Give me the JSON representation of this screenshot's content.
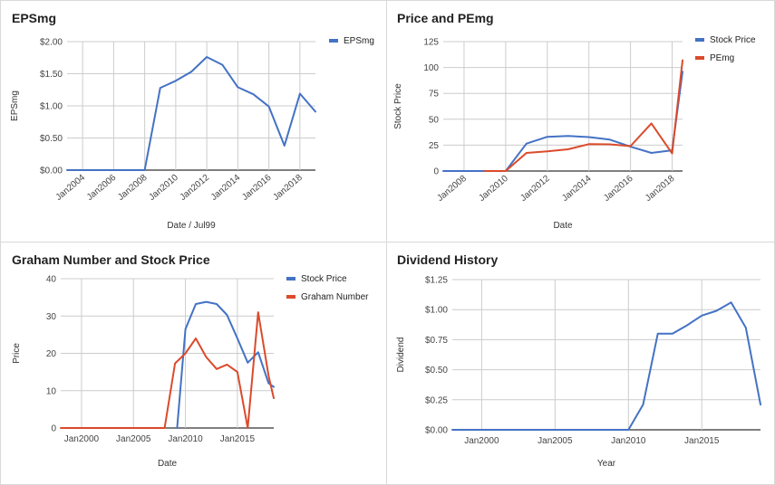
{
  "colors": {
    "blue": "#4472c4",
    "red": "#db4a2b",
    "grid": "#cccccc",
    "axis": "#333333"
  },
  "chart_data": [
    {
      "type": "line",
      "title": "EPSmg",
      "xlabel": "Date / Jul99",
      "ylabel": "EPSmg",
      "ylim": [
        0,
        2
      ],
      "xlim": [
        2003,
        2019
      ],
      "yticks": [
        0,
        0.5,
        1.0,
        1.5,
        2.0
      ],
      "ytick_labels": [
        "$0.00",
        "$0.50",
        "$1.00",
        "$1.50",
        "$2.00"
      ],
      "xticks": [
        2004,
        2006,
        2008,
        2010,
        2012,
        2014,
        2016,
        2018
      ],
      "xtick_labels": [
        "Jan2004",
        "Jan2006",
        "Jan2008",
        "Jan2010",
        "Jan2012",
        "Jan2014",
        "Jan2016",
        "Jan2018"
      ],
      "xtick_rotate": true,
      "grid": true,
      "legend": "top-right",
      "series": [
        {
          "name": "EPSmg",
          "color": "#4472c4",
          "x": [
            2003,
            2004,
            2005,
            2006,
            2007,
            2008,
            2009,
            2010,
            2011,
            2012,
            2013,
            2014,
            2015,
            2016,
            2017,
            2018,
            2019
          ],
          "y": [
            0,
            0,
            0,
            0,
            0,
            0,
            1.28,
            1.39,
            1.53,
            1.76,
            1.64,
            1.29,
            1.18,
            0.99,
            0.38,
            1.19,
            0.91
          ]
        }
      ]
    },
    {
      "type": "line",
      "title": "Price and PEmg",
      "xlabel": "Date",
      "ylabel": "Stock Price",
      "ylim": [
        0,
        125
      ],
      "xlim": [
        2007,
        2018.5
      ],
      "yticks": [
        0,
        25,
        50,
        75,
        100,
        125
      ],
      "ytick_labels": [
        "0",
        "25",
        "50",
        "75",
        "100",
        "125"
      ],
      "xticks": [
        2008,
        2010,
        2012,
        2014,
        2016,
        2018
      ],
      "xtick_labels": [
        "Jan2008",
        "Jan2010",
        "Jan2012",
        "Jan2014",
        "Jan2016",
        "Jan2018"
      ],
      "xtick_rotate": true,
      "grid": true,
      "legend": "top-right",
      "series": [
        {
          "name": "Stock Price",
          "color": "#4472c4",
          "x": [
            2007,
            2008,
            2009,
            2010,
            2011,
            2012,
            2013,
            2014,
            2015,
            2016,
            2017,
            2018,
            2018.5
          ],
          "y": [
            0,
            0,
            0,
            0,
            26.5,
            33,
            33.8,
            32.8,
            30.3,
            23.5,
            17.5,
            20,
            96
          ]
        },
        {
          "name": "PEmg",
          "color": "#db4a2b",
          "x": [
            2009,
            2010,
            2011,
            2012,
            2013,
            2014,
            2015,
            2016,
            2017,
            2018,
            2018.5
          ],
          "y": [
            0,
            0,
            17.5,
            19,
            21,
            26,
            25.8,
            24,
            46,
            17,
            107
          ]
        }
      ]
    },
    {
      "type": "line",
      "title": "Graham Number and Stock Price",
      "xlabel": "Date",
      "ylabel": "Price",
      "ylim": [
        0,
        40
      ],
      "xlim": [
        1998,
        2018.5
      ],
      "yticks": [
        0,
        10,
        20,
        30,
        40
      ],
      "ytick_labels": [
        "0",
        "10",
        "20",
        "30",
        "40"
      ],
      "xticks": [
        2000,
        2005,
        2010,
        2015
      ],
      "xtick_labels": [
        "Jan2000",
        "Jan2005",
        "Jan2010",
        "Jan2015"
      ],
      "xtick_rotate": false,
      "grid": true,
      "legend": "top-right",
      "series": [
        {
          "name": "Stock Price",
          "color": "#4472c4",
          "x": [
            2009.2,
            2010,
            2011,
            2012,
            2013,
            2014,
            2015,
            2016,
            2017,
            2018,
            2018.5
          ],
          "y": [
            0,
            26.5,
            33.2,
            33.8,
            33.2,
            30.3,
            24,
            17.5,
            20.3,
            12,
            11
          ]
        },
        {
          "name": "Graham Number",
          "color": "#db4a2b",
          "x": [
            1998,
            2000,
            2002,
            2004,
            2006,
            2008,
            2009,
            2010,
            2011,
            2012,
            2013,
            2014,
            2015,
            2016,
            2017,
            2018,
            2018.5
          ],
          "y": [
            0,
            0,
            0,
            0,
            0,
            0,
            17.3,
            20,
            24,
            19,
            15.8,
            17,
            15,
            0,
            31,
            14,
            8
          ]
        }
      ]
    },
    {
      "type": "line",
      "title": "Dividend History",
      "xlabel": "Year",
      "ylabel": "Dividend",
      "ylim": [
        0,
        1.25
      ],
      "xlim": [
        1998,
        2019
      ],
      "yticks": [
        0,
        0.25,
        0.5,
        0.75,
        1.0,
        1.25
      ],
      "ytick_labels": [
        "$0.00",
        "$0.25",
        "$0.50",
        "$0.75",
        "$1.00",
        "$1.25"
      ],
      "xticks": [
        2000,
        2005,
        2010,
        2015
      ],
      "xtick_labels": [
        "Jan2000",
        "Jan2005",
        "Jan2010",
        "Jan2015"
      ],
      "xtick_rotate": false,
      "grid": true,
      "legend": "none",
      "series": [
        {
          "color": "#4472c4",
          "x": [
            1998,
            2000,
            2005,
            2010,
            2011,
            2012,
            2013,
            2014,
            2015,
            2016,
            2017,
            2018,
            2019
          ],
          "y": [
            0,
            0,
            0,
            0,
            0.21,
            0.8,
            0.8,
            0.87,
            0.95,
            0.99,
            1.06,
            0.85,
            0.21
          ]
        }
      ]
    }
  ]
}
